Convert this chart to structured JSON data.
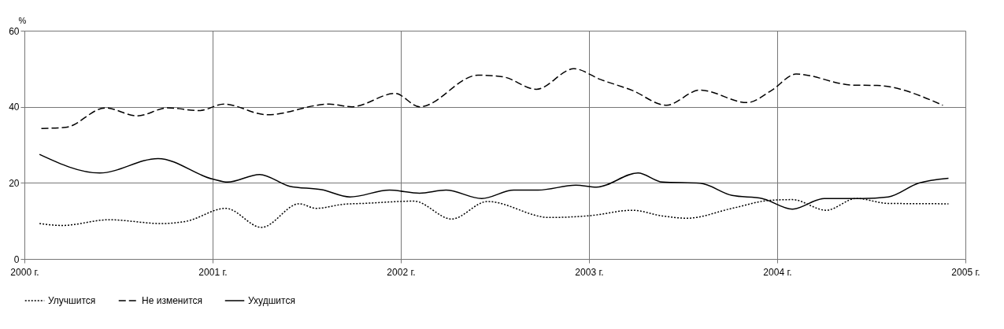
{
  "chart_data": {
    "type": "line",
    "ylabel": "%",
    "xlim": [
      2000,
      2005
    ],
    "ylim": [
      0,
      60
    ],
    "yticks": [
      0,
      20,
      40,
      60
    ],
    "xticks": [
      {
        "value": 2000,
        "label": "2000 г."
      },
      {
        "value": 2001,
        "label": "2001 г."
      },
      {
        "value": 2002,
        "label": "2002 г."
      },
      {
        "value": 2003,
        "label": "2003 г."
      },
      {
        "value": 2004,
        "label": "2004 г."
      },
      {
        "value": 2005,
        "label": "2005 г."
      }
    ],
    "grid": true,
    "legend": "bottom left",
    "marker": "none",
    "series": [
      {
        "name": "Улучшится",
        "color": "#000000",
        "line_style": "dotted",
        "x": [
          2000.08,
          2000.2,
          2000.45,
          2000.73,
          2000.86,
          2001.07,
          2001.26,
          2001.46,
          2001.55,
          2001.7,
          2001.8,
          2002.07,
          2002.27,
          2002.46,
          2002.79,
          2003.01,
          2003.23,
          2003.39,
          2003.52,
          2003.76,
          2003.96,
          2004.08,
          2004.26,
          2004.42,
          2004.59,
          2004.91
        ],
        "values": [
          9.3,
          8.8,
          10.3,
          9.3,
          9.9,
          13.3,
          8.3,
          14.5,
          13.3,
          14.4,
          14.6,
          15.2,
          10.5,
          15.1,
          10.9,
          11.4,
          12.8,
          11.3,
          10.7,
          13.3,
          15.4,
          15.6,
          12.8,
          15.9,
          14.6,
          14.5
        ]
      },
      {
        "name": "Не изменится",
        "color": "#000000",
        "line_style": "dashed",
        "x": [
          2000.09,
          2000.22,
          2000.43,
          2000.6,
          2000.76,
          2000.93,
          2001.06,
          2001.29,
          2001.62,
          2001.74,
          2001.97,
          2002.1,
          2002.41,
          2002.54,
          2002.72,
          2002.92,
          2003.06,
          2003.23,
          2003.41,
          2003.59,
          2003.84,
          2003.97,
          2004.1,
          2004.4,
          2004.53,
          2004.88
        ],
        "values": [
          34.3,
          34.6,
          39.7,
          37.6,
          39.7,
          39.0,
          40.7,
          37.9,
          40.7,
          40.0,
          43.5,
          40.0,
          48.3,
          47.9,
          44.6,
          50.0,
          47.2,
          44.3,
          40.4,
          44.4,
          41.1,
          44.3,
          48.6,
          45.7,
          45.6,
          40.4
        ]
      },
      {
        "name": "Ухудшится",
        "color": "#000000",
        "line_style": "solid",
        "x": [
          2000.08,
          2000.4,
          2000.71,
          2001.0,
          2001.08,
          2001.25,
          2001.41,
          2001.58,
          2001.73,
          2001.94,
          2002.1,
          2002.24,
          2002.43,
          2002.6,
          2002.73,
          2002.93,
          2003.04,
          2003.26,
          2003.39,
          2003.59,
          2003.76,
          2003.92,
          2004.08,
          2004.25,
          2004.45,
          2004.59,
          2004.75,
          2004.91
        ],
        "values": [
          27.5,
          22.6,
          26.4,
          21.0,
          20.2,
          22.2,
          19.1,
          18.2,
          16.3,
          18.1,
          17.3,
          18.1,
          15.9,
          18.1,
          18.1,
          19.4,
          18.9,
          22.6,
          20.2,
          19.9,
          16.7,
          15.9,
          13.1,
          15.9,
          15.9,
          16.3,
          19.9,
          21.2
        ]
      }
    ]
  }
}
